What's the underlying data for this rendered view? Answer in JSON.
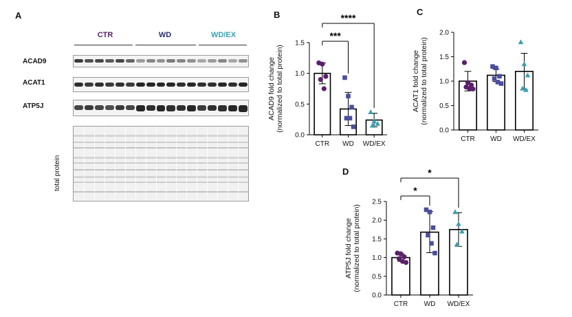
{
  "panels": {
    "A": "A",
    "B": "B",
    "C": "C",
    "D": "D"
  },
  "colors": {
    "ctr": "#5b1f6b",
    "wd": "#4a4e9c",
    "wdex": "#3aa0b0",
    "bar": "#000000"
  },
  "blot": {
    "groups": [
      {
        "label": "CTR",
        "color": "#5b1f6b"
      },
      {
        "label": "WD",
        "color": "#2a2d7a"
      },
      {
        "label": "WD/EX",
        "color": "#3aa0b0"
      }
    ],
    "rows": [
      {
        "label": "ACAD9"
      },
      {
        "label": "ACAT1"
      },
      {
        "label": "ATP5J"
      }
    ],
    "total_protein_label": "total protein"
  },
  "chart_data": [
    {
      "id": "B",
      "type": "bar",
      "categories": [
        "CTR",
        "WD",
        "WD/EX"
      ],
      "values": [
        1.0,
        0.42,
        0.24
      ],
      "errors": [
        0.17,
        0.27,
        0.11
      ],
      "points": [
        [
          1.17,
          1.15,
          0.95,
          0.9,
          0.75
        ],
        [
          0.93,
          0.63,
          0.45,
          0.27,
          0.27,
          0.13
        ],
        [
          0.37,
          0.22,
          0.18,
          0.15
        ]
      ],
      "ylabel_line1": "ACAD9 fold change",
      "ylabel_line2": "(normalized to total protein)",
      "ylim": [
        0,
        1.5
      ],
      "yticks": [
        "0.0",
        "0.5",
        "1.0",
        "1.5"
      ],
      "significance": [
        {
          "from": 0,
          "to": 1,
          "label": "***"
        },
        {
          "from": 0,
          "to": 2,
          "label": "****"
        }
      ]
    },
    {
      "id": "C",
      "type": "bar",
      "categories": [
        "CTR",
        "WD",
        "WD/EX"
      ],
      "values": [
        1.0,
        1.12,
        1.2
      ],
      "errors": [
        0.2,
        0.13,
        0.37
      ],
      "points": [
        [
          1.38,
          0.97,
          0.92,
          0.88,
          0.85,
          0.84
        ],
        [
          1.3,
          1.27,
          1.1,
          1.05,
          0.98,
          0.95
        ],
        [
          1.8,
          1.35,
          1.12,
          0.85,
          0.82
        ]
      ],
      "ylabel_line1": "ACAT1 fold change",
      "ylabel_line2": "(normalized to total protein)",
      "ylim": [
        0,
        2.0
      ],
      "yticks": [
        "0.0",
        "0.5",
        "1.0",
        "1.5",
        "2.0"
      ],
      "significance": []
    },
    {
      "id": "D",
      "type": "bar",
      "categories": [
        "CTR",
        "WD",
        "WD/EX"
      ],
      "values": [
        1.0,
        1.68,
        1.75
      ],
      "errors": [
        0.1,
        0.55,
        0.45
      ],
      "points": [
        [
          1.12,
          1.1,
          1.02,
          0.97,
          0.9,
          0.87
        ],
        [
          2.28,
          2.22,
          1.8,
          1.6,
          1.38,
          1.12
        ],
        [
          2.22,
          1.9,
          1.7,
          1.35
        ]
      ],
      "ylabel_line1": "ATP5J fold change",
      "ylabel_line2": "(normalized to total protein)",
      "ylim": [
        0,
        2.5
      ],
      "yticks": [
        "0.0",
        "0.5",
        "1.0",
        "1.5",
        "2.0",
        "2.5"
      ],
      "significance": [
        {
          "from": 0,
          "to": 1,
          "label": "*"
        },
        {
          "from": 0,
          "to": 2,
          "label": "*"
        }
      ]
    }
  ]
}
